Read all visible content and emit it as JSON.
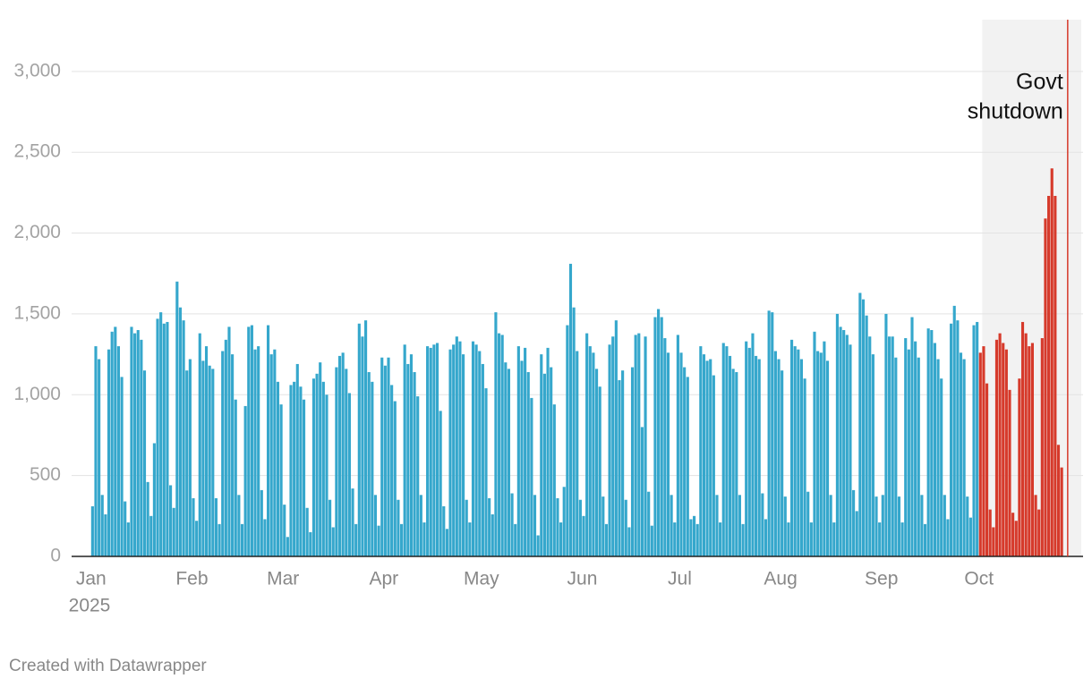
{
  "chart_data": {
    "type": "bar",
    "xlim": [
      -6,
      305
    ],
    "ylim": [
      0,
      3320
    ],
    "yticks": [
      0,
      500,
      {
        "value": 1000,
        "label": "1,000"
      },
      {
        "value": 1500,
        "label": "1,500"
      },
      {
        "value": 2000,
        "label": "2,000"
      },
      {
        "value": 2500,
        "label": "2,500"
      },
      {
        "value": 3000,
        "label": "3,000"
      }
    ],
    "xticks": [
      {
        "value": 0,
        "label": "Jan"
      },
      {
        "value": 31,
        "label": "Feb"
      },
      {
        "value": 59,
        "label": "Mar"
      },
      {
        "value": 90,
        "label": "Apr"
      },
      {
        "value": 120,
        "label": "May"
      },
      {
        "value": 151,
        "label": "Jun"
      },
      {
        "value": 181,
        "label": "Jul"
      },
      {
        "value": 212,
        "label": "Aug"
      },
      {
        "value": 243,
        "label": "Sep"
      },
      {
        "value": 273,
        "label": "Oct"
      }
    ],
    "year_label": "2025",
    "grid": true,
    "series": [
      {
        "color": "#35a7cc",
        "start": 0,
        "values": [
          310,
          1300,
          1220,
          380,
          260,
          1280,
          1390,
          1420,
          1300,
          1110,
          340,
          210,
          1420,
          1380,
          1400,
          1340,
          1150,
          460,
          250,
          700,
          1470,
          1510,
          1440,
          1450,
          440,
          300,
          1700,
          1540,
          1460,
          1150,
          1220,
          360,
          220,
          1380,
          1210,
          1300,
          1180,
          1160,
          360,
          200,
          1270,
          1340,
          1420,
          1250,
          970,
          380,
          200,
          930,
          1420,
          1430,
          1280,
          1300,
          410,
          230,
          1430,
          1250,
          1280,
          1080,
          940,
          320,
          120,
          1060,
          1080,
          1190,
          1050,
          970,
          300,
          150,
          1100,
          1130,
          1200,
          1080,
          1000,
          350,
          180,
          1170,
          1240,
          1260,
          1160,
          1010,
          420,
          200,
          1440,
          1360,
          1460,
          1140,
          1080,
          380,
          190,
          1230,
          1180,
          1230,
          1060,
          960,
          350,
          200,
          1310,
          1190,
          1250,
          1140,
          990,
          380,
          210,
          1300,
          1290,
          1310,
          1320,
          900,
          310,
          170,
          1280,
          1310,
          1360,
          1330,
          1250,
          350,
          210,
          1330,
          1310,
          1270,
          1190,
          1040,
          360,
          260,
          1510,
          1380,
          1370,
          1200,
          1160,
          390,
          200,
          1300,
          1210,
          1290,
          1140,
          980,
          380,
          130,
          1250,
          1130,
          1290,
          1170,
          940,
          360,
          210,
          430,
          1430,
          1810,
          1540,
          1270,
          350,
          250,
          1380,
          1300,
          1260,
          1160,
          1050,
          370,
          200,
          1310,
          1360,
          1460,
          1090,
          1150,
          350,
          180,
          1170,
          1370,
          1380,
          800,
          1360,
          400,
          190,
          1480,
          1530,
          1480,
          1350,
          1260,
          380,
          210,
          1370,
          1260,
          1170,
          1110,
          230,
          250,
          200,
          1300,
          1250,
          1210,
          1220,
          1120,
          380,
          210,
          1320,
          1300,
          1240,
          1160,
          1140,
          380,
          200,
          1330,
          1290,
          1380,
          1240,
          1220,
          390,
          230,
          1520,
          1510,
          1270,
          1220,
          1150,
          370,
          210,
          1340,
          1300,
          1280,
          1220,
          1100,
          400,
          210,
          1390,
          1270,
          1260,
          1330,
          1210,
          380,
          210,
          1500,
          1420,
          1400,
          1370,
          1310,
          410,
          280,
          1630,
          1590,
          1490,
          1360,
          1250,
          370,
          210,
          380,
          1500,
          1360,
          1360,
          1230,
          370,
          210,
          1350,
          1280,
          1480,
          1330,
          1230,
          380,
          200,
          1410,
          1400,
          1320,
          1220,
          1100,
          380,
          230,
          1440,
          1550,
          1460,
          1260,
          1220,
          370,
          240,
          1430,
          1450
        ]
      },
      {
        "color": "#d63a2b",
        "start": 273,
        "values": [
          1260,
          1300,
          1070,
          290,
          180,
          1340,
          1380,
          1320,
          1280,
          1030,
          270,
          220,
          1100,
          1450,
          1380,
          1300,
          1320,
          380,
          290,
          1350,
          2090,
          2230,
          2400,
          2230,
          690,
          550
        ]
      }
    ],
    "annotation": {
      "lines": [
        "Govt",
        "shutdown"
      ],
      "shade_start": 274,
      "marker": 299,
      "shade_color": "#f2f2f2",
      "marker_color": "#d63a2b"
    },
    "footer": "Created with Datawrapper"
  }
}
